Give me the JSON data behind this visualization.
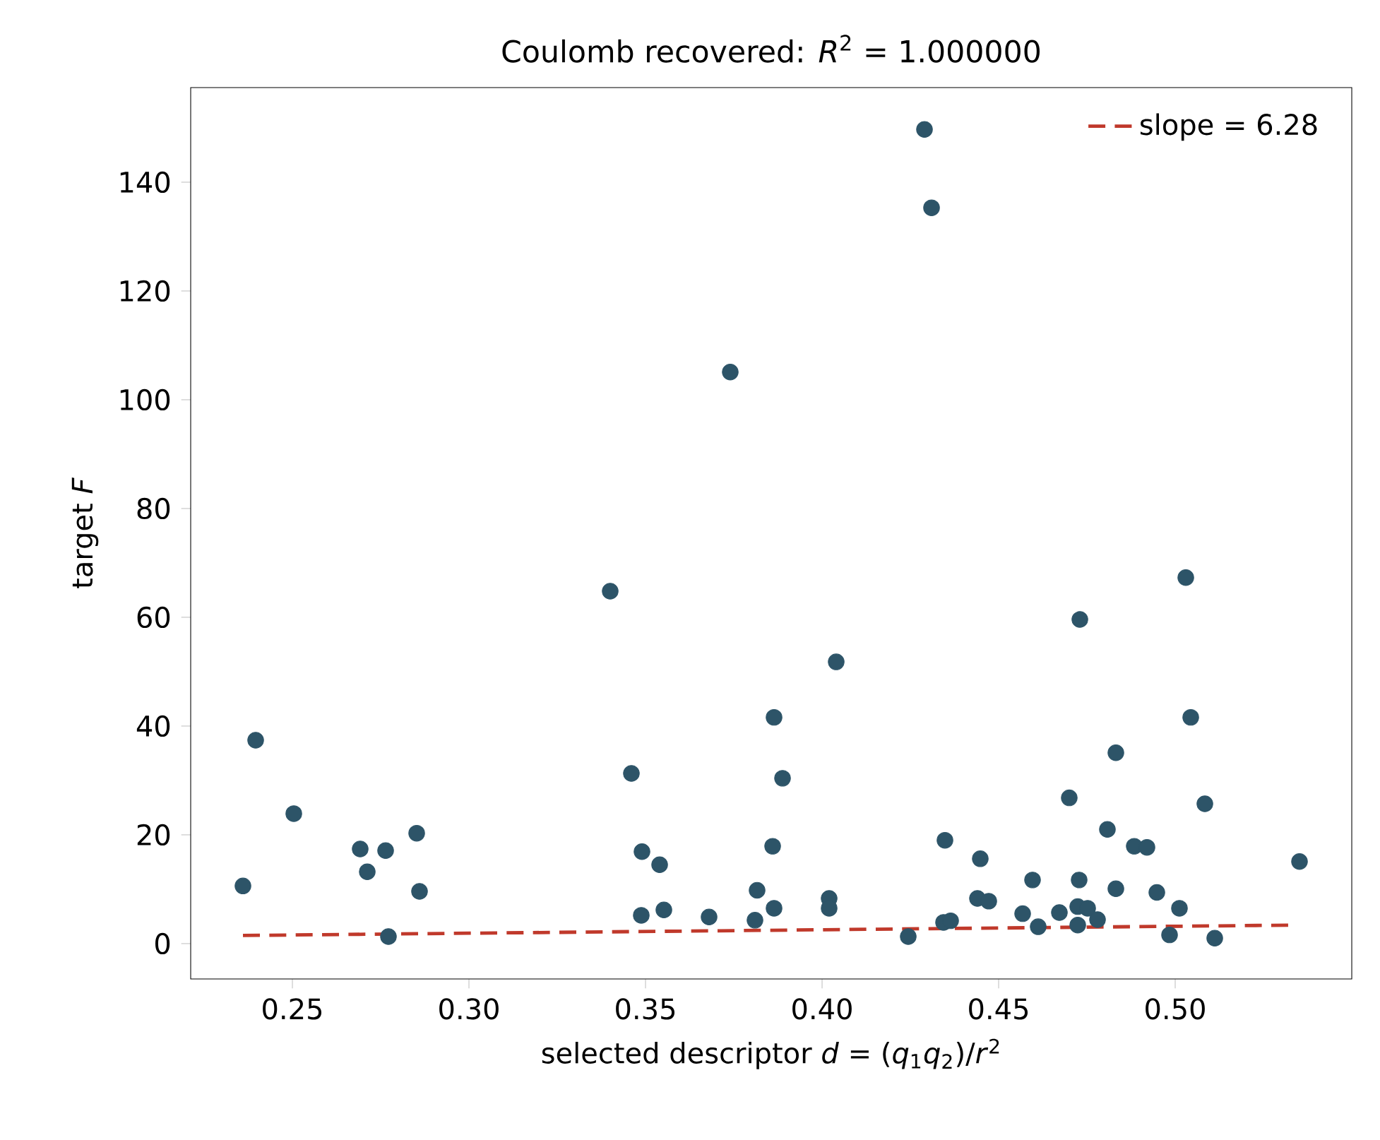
{
  "chart_data": {
    "type": "scatter",
    "title": "Coulomb recovered: *R*$^{2}$ = 1.000000",
    "xlabel": "selected descriptor  *d* = (*q*$_{1}$*q*$_{2}$)/*r*$^{2}$",
    "ylabel": "target  *F*",
    "xlim": [
      0.2212,
      0.55
    ],
    "ylim": [
      -6.5,
      157.4
    ],
    "xticks": [
      0.25,
      {
        "value": 0.3,
        "label": "0.30"
      },
      0.35,
      {
        "value": 0.4,
        "label": "0.40"
      },
      0.45,
      {
        "value": 0.5,
        "label": "0.50"
      }
    ],
    "yticks": [
      0,
      20,
      40,
      60,
      80,
      100,
      120,
      140
    ],
    "grid": false,
    "legend": "top right",
    "series": [
      {
        "color": "#2d5468",
        "marker": "circle",
        "x": [
          0.236,
          0.2396,
          0.2504,
          0.2692,
          0.2712,
          0.2764,
          0.2772,
          0.2852,
          0.286,
          0.34,
          0.346,
          0.349,
          0.3488,
          0.354,
          0.3552,
          0.368,
          0.374,
          0.3816,
          0.381,
          0.3864,
          0.3888,
          0.386,
          0.3864,
          0.402,
          0.402,
          0.404,
          0.4244,
          0.429,
          0.431,
          0.4348,
          0.4344,
          0.4364,
          0.4448,
          0.444,
          0.4472,
          0.4568,
          0.4596,
          0.4612,
          0.47,
          0.4672,
          0.4728,
          0.4724,
          0.4752,
          0.4724,
          0.473,
          0.478,
          0.4832,
          0.4808,
          0.4832,
          0.4884,
          0.492,
          0.4948,
          0.5012,
          0.4984,
          0.503,
          0.5044,
          0.5084,
          0.5112,
          0.5352
        ],
        "values": [
          10.6,
          37.4,
          23.9,
          17.4,
          13.2,
          17.1,
          1.3,
          20.3,
          9.6,
          64.8,
          31.3,
          16.9,
          5.2,
          14.5,
          6.2,
          4.9,
          105.1,
          9.8,
          4.3,
          41.6,
          30.4,
          17.9,
          6.5,
          8.3,
          6.5,
          51.8,
          1.3,
          149.7,
          135.3,
          19.0,
          3.9,
          4.2,
          15.6,
          8.3,
          7.8,
          5.5,
          11.7,
          3.1,
          26.8,
          5.7,
          11.7,
          6.8,
          6.5,
          3.4,
          59.6,
          4.4,
          35.1,
          21.0,
          10.1,
          17.9,
          17.7,
          9.4,
          6.5,
          1.6,
          67.3,
          41.6,
          25.7,
          1.0,
          15.1
        ]
      },
      {
        "type": "line",
        "name": "slope = 6.28",
        "color": "#c0392b",
        "line_style": "dashed",
        "x": [
          0.236,
          0.533
        ],
        "values": [
          1.5,
          3.4
        ]
      }
    ]
  }
}
